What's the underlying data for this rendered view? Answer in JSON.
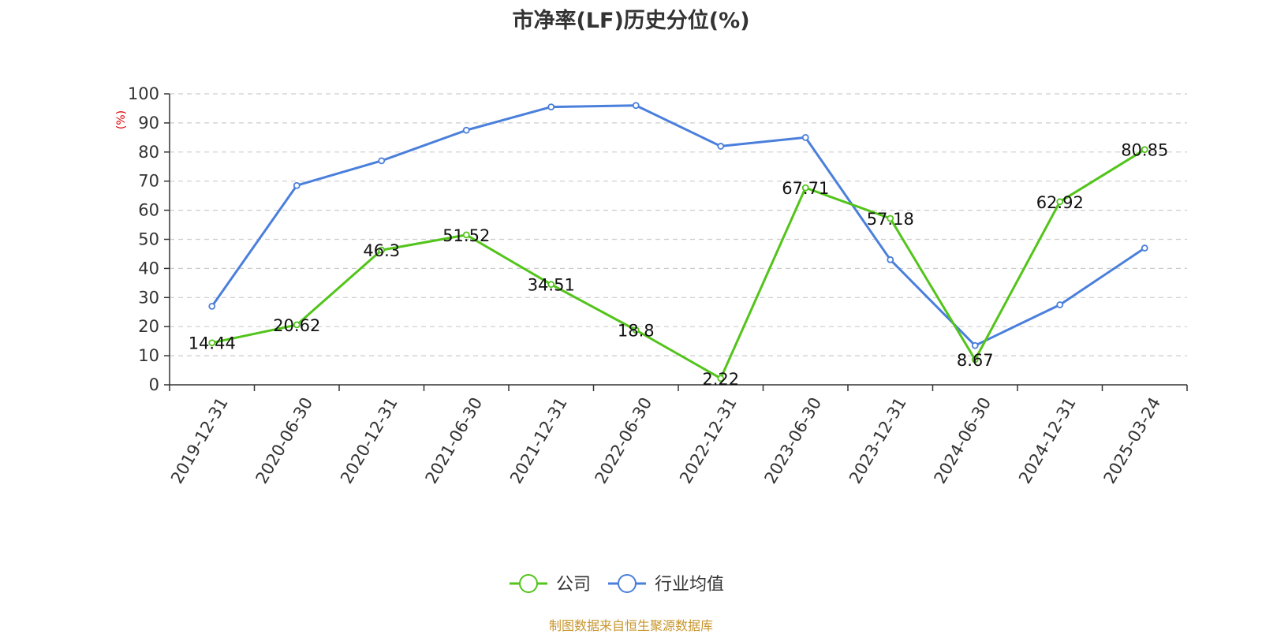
{
  "title": "市净率(LF)历史分位(%)",
  "footer": "制图数据来自恒生聚源数据库",
  "chart_data": {
    "type": "line",
    "title": "市净率(LF)历史分位(%)",
    "ylabel": "(%)",
    "xlabel": "",
    "categories": [
      "2019-12-31",
      "2020-06-30",
      "2020-12-31",
      "2021-06-30",
      "2021-12-31",
      "2022-06-30",
      "2022-12-31",
      "2023-06-30",
      "2023-12-31",
      "2024-06-30",
      "2024-12-31",
      "2025-03-24"
    ],
    "ylim": [
      0,
      100
    ],
    "yticks": [
      0,
      10,
      20,
      30,
      40,
      50,
      60,
      70,
      80,
      90,
      100
    ],
    "grid": true,
    "legend_position": "bottom-center",
    "series": [
      {
        "name": "公司",
        "color": "#52c41a",
        "show_labels": true,
        "values": [
          14.44,
          20.62,
          46.3,
          51.52,
          34.51,
          18.8,
          2.22,
          67.71,
          57.18,
          8.67,
          62.92,
          80.85
        ],
        "labels": [
          "14.44",
          "20.62",
          "46.3",
          "51.52",
          "34.51",
          "18.8",
          "2.22",
          "67.71",
          "57.18",
          "8.67",
          "62.92",
          "80.85"
        ]
      },
      {
        "name": "行业均值",
        "color": "#4a7fdc",
        "show_labels": false,
        "values": [
          27,
          68.5,
          77,
          87.5,
          95.5,
          96,
          82,
          85,
          43,
          13.5,
          27.5,
          47
        ]
      }
    ],
    "unit_color": "#e00000"
  }
}
